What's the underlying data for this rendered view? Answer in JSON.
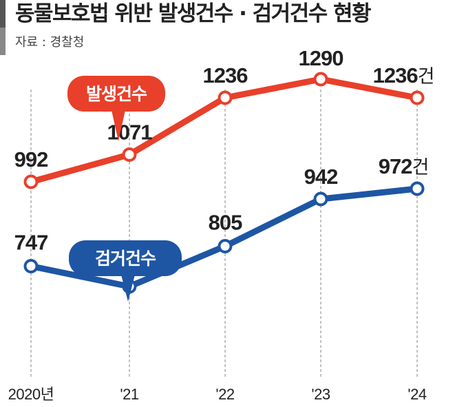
{
  "title": "동물보호법 위반 발생건수 · 검거건수 현황",
  "source": "자료 : 경찰청",
  "chart_data": {
    "type": "line",
    "title": "동물보호법 위반 발생건수 · 검거건수 현황",
    "categories": [
      "2020년",
      "'21",
      "'22",
      "'23",
      "'24"
    ],
    "unit": "건",
    "grid": "vertical dashed lines at each year",
    "series": [
      {
        "name": "발생건수",
        "values": [
          992,
          1071,
          1236,
          1290,
          1236
        ],
        "color": "#e8402a"
      },
      {
        "name": "검거건수",
        "values": [
          747,
          688,
          805,
          942,
          972
        ],
        "color": "#1e56a4"
      }
    ]
  }
}
